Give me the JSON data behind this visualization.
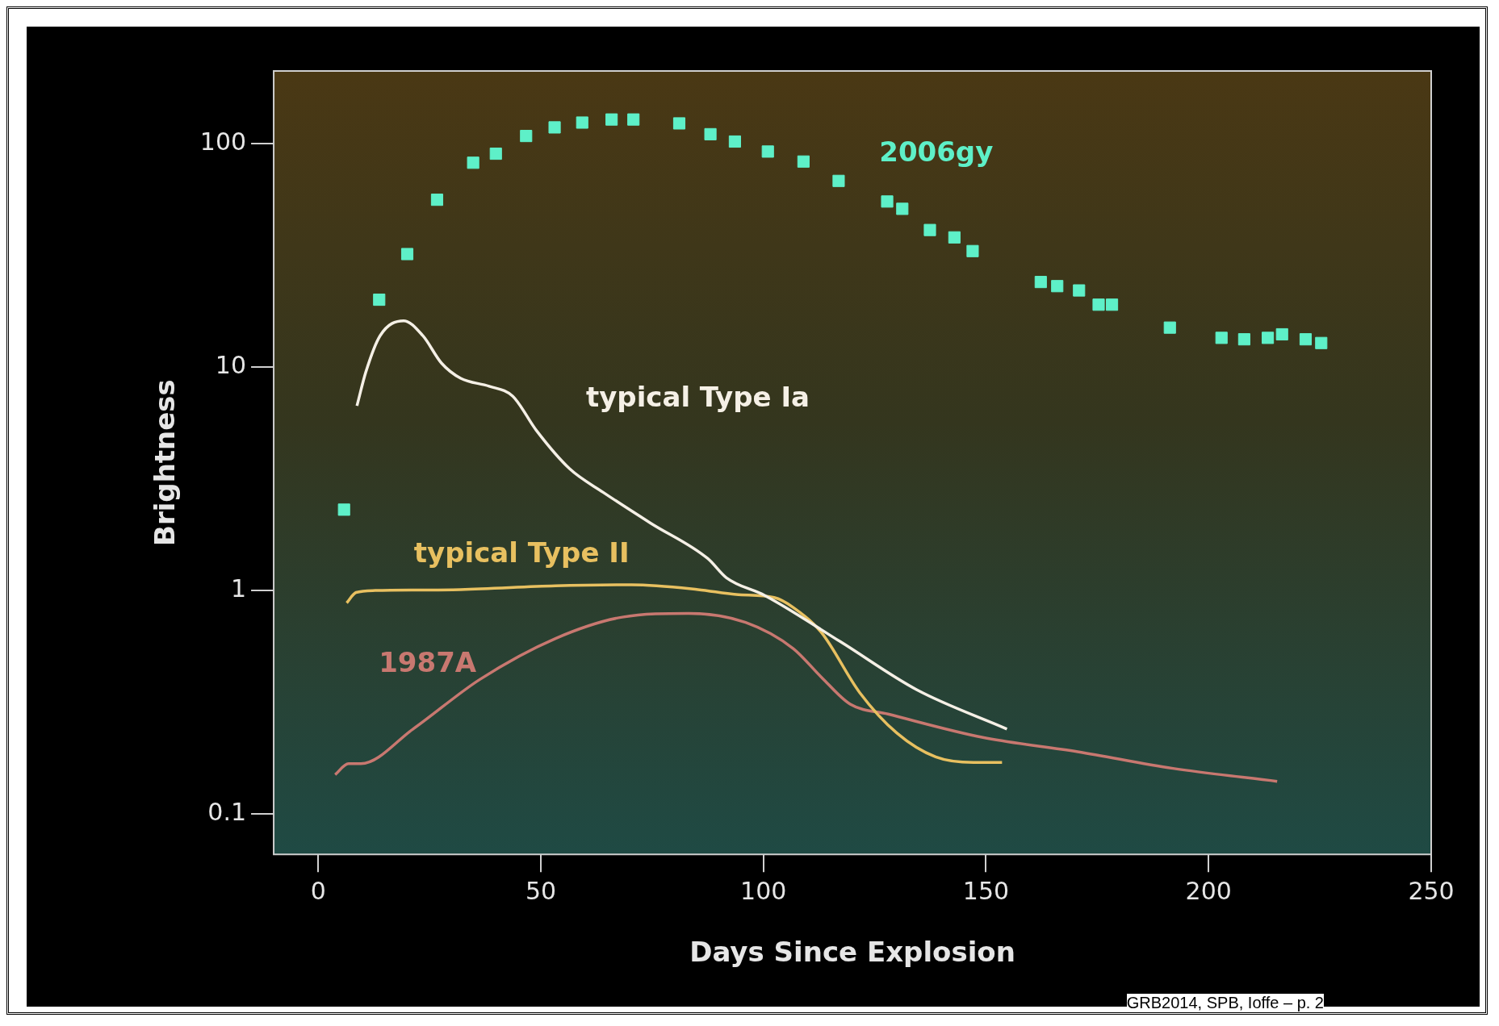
{
  "chart_data": {
    "type": "line",
    "xlabel": "Days Since Explosion",
    "ylabel": "Brightness",
    "log": "y",
    "grid": false,
    "legend": false,
    "xlim": [
      -10,
      250
    ],
    "xticks": [
      0,
      50,
      100,
      150,
      200,
      250
    ],
    "ylim": [
      0.066,
      211
    ],
    "yticks": [
      0.1,
      1,
      10,
      100
    ],
    "series": [
      {
        "name": "2006gy",
        "type": "scatter",
        "marker": "square",
        "color": "#5ef0c8",
        "x": [
          5.8,
          13.7,
          20,
          26.7,
          34.8,
          39.9,
          46.7,
          53.1,
          59.3,
          65.9,
          70.8,
          81.1,
          88.1,
          93.6,
          101,
          109,
          116.9,
          127.8,
          131.2,
          137.4,
          142.9,
          147,
          162.3,
          166,
          170.9,
          175.3,
          178.3,
          191.3,
          202.9,
          208,
          213.3,
          216.5,
          221.8,
          225.3
        ],
        "values": [
          2.3,
          20,
          32,
          56,
          82,
          90,
          108,
          118,
          124,
          128,
          128,
          123,
          110,
          102,
          92,
          83,
          68,
          55,
          51,
          41,
          38,
          33,
          24,
          23,
          22,
          19,
          19,
          15,
          13.5,
          13.3,
          13.5,
          14,
          13.3,
          12.8
        ]
      },
      {
        "name": "typical Type Ia",
        "type": "line",
        "color": "#f5f0e6",
        "x": [
          8.7,
          10.7,
          13.9,
          19.2,
          23.5,
          27.7,
          32,
          38.4,
          43.7,
          49,
          56.5,
          64,
          74.7,
          87.5,
          91.7,
          100.3,
          117.3,
          134.4,
          154.7
        ],
        "values": [
          6.7,
          9.5,
          13.8,
          16.1,
          13.8,
          10.4,
          8.9,
          8.2,
          7.4,
          5.2,
          3.5,
          2.75,
          2.0,
          1.39,
          1.14,
          0.95,
          0.59,
          0.36,
          0.24
        ]
      },
      {
        "name": "typical Type II",
        "type": "line",
        "color": "#e8c060",
        "x": [
          6.4,
          8.5,
          12.8,
          32,
          53.3,
          70.4,
          85.3,
          93.9,
          102.4,
          106.7,
          113,
          121.6,
          130,
          138.7,
          147.2,
          153.6
        ],
        "values": [
          0.88,
          0.98,
          1.0,
          1.01,
          1.05,
          1.06,
          1.01,
          0.96,
          0.93,
          0.84,
          0.65,
          0.35,
          0.23,
          0.18,
          0.17,
          0.17
        ]
      },
      {
        "name": "1987A",
        "type": "line",
        "color": "#c87870",
        "x": [
          3.8,
          6.8,
          9.6,
          21.3,
          36.3,
          53.3,
          68.3,
          83.2,
          96,
          106.7,
          113,
          119.5,
          128,
          149.3,
          170.6,
          192,
          215.4
        ],
        "values": [
          0.15,
          0.168,
          0.168,
          0.24,
          0.4,
          0.61,
          0.76,
          0.79,
          0.72,
          0.55,
          0.41,
          0.31,
          0.28,
          0.22,
          0.19,
          0.16,
          0.14
        ]
      }
    ],
    "annotations": [
      "GRB2014, SPB, Ioffe – p. 2"
    ]
  }
}
